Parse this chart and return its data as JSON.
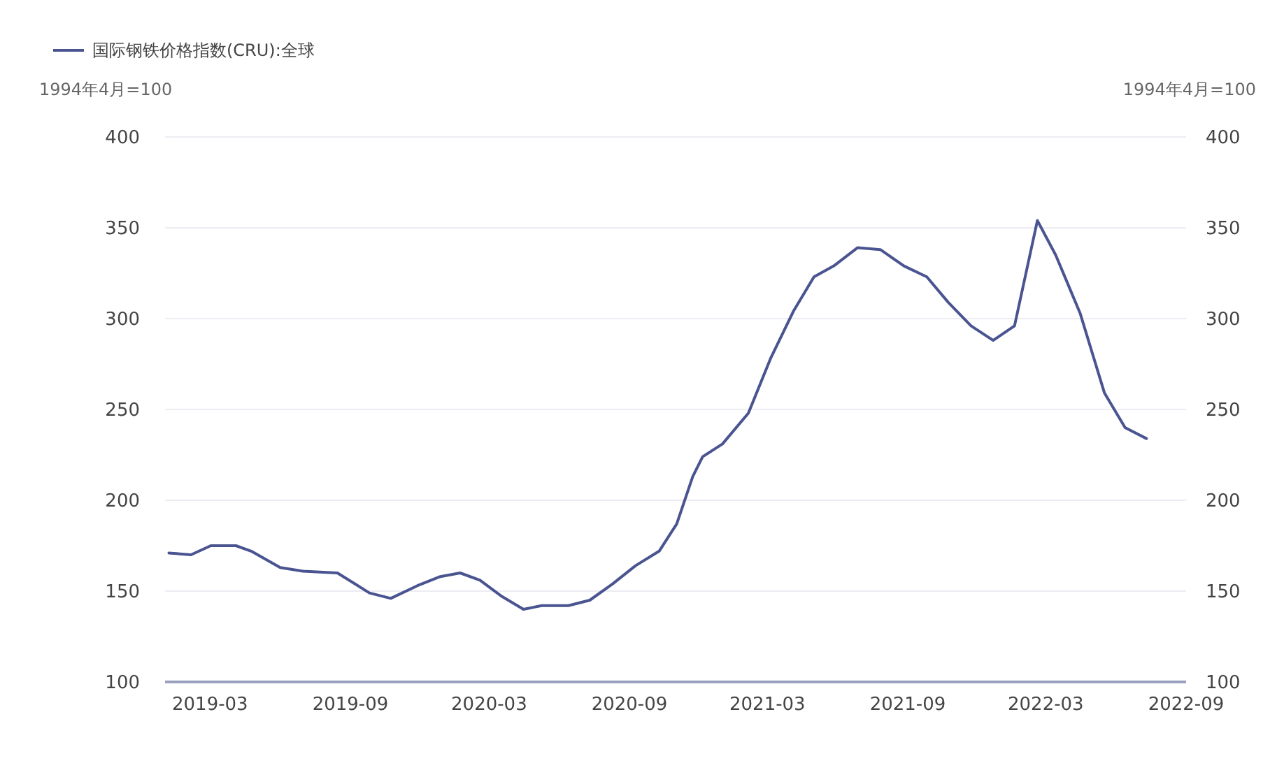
{
  "chart_data": {
    "type": "line",
    "ylabel": "1994年4月=100",
    "y2label": "1994年4月=100",
    "x": [
      "2019-01-06",
      "2019-02-04",
      "2019-03-02",
      "2019-04-04",
      "2019-04-24",
      "2019-06-01",
      "2019-07-01",
      "2019-08-15",
      "2019-09-26",
      "2019-10-24",
      "2019-11-28",
      "2019-12-28",
      "2020-01-23",
      "2020-02-18",
      "2020-03-18",
      "2020-04-15",
      "2020-05-09",
      "2020-06-13",
      "2020-07-11",
      "2020-08-10",
      "2020-09-09",
      "2020-10-10",
      "2020-11-02",
      "2020-11-23",
      "2020-12-06",
      "2021-01-01",
      "2021-02-04",
      "2021-03-05",
      "2021-04-04",
      "2021-05-01",
      "2021-05-27",
      "2021-06-27",
      "2021-07-27",
      "2021-08-27",
      "2021-09-26",
      "2021-10-24",
      "2021-11-23",
      "2021-12-22",
      "2022-01-19",
      "2022-02-18",
      "2022-03-14",
      "2022-04-15",
      "2022-05-17",
      "2022-06-13",
      "2022-07-11"
    ],
    "series": [
      {
        "name": "国际钢铁价格指数(CRU):全球",
        "color": "#4a5490",
        "values": [
          171,
          170,
          175,
          175,
          172,
          163,
          161,
          160,
          149,
          146,
          153,
          158,
          160,
          156,
          147,
          140,
          142,
          142,
          145,
          154,
          164,
          172,
          187,
          213,
          224,
          231,
          248,
          278,
          304,
          323,
          329,
          339,
          338,
          329,
          323,
          309,
          296,
          288,
          296,
          354,
          335,
          303,
          259,
          240,
          234
        ]
      }
    ],
    "xlim": [
      "2019-01-01",
      "2022-09-01"
    ],
    "xticks": [
      {
        "value": "2019-03",
        "label": "2019-03"
      },
      {
        "value": "2019-09",
        "label": "2019-09"
      },
      {
        "value": "2020-03",
        "label": "2020-03"
      },
      {
        "value": "2020-09",
        "label": "2020-09"
      },
      {
        "value": "2021-03",
        "label": "2021-03"
      },
      {
        "value": "2021-09",
        "label": "2021-09"
      },
      {
        "value": "2022-03",
        "label": "2022-03"
      },
      {
        "value": "2022-09",
        "label": "2022-09"
      }
    ],
    "ylim": [
      100,
      400
    ],
    "yticks": [
      100,
      150,
      200,
      250,
      300,
      350,
      400
    ],
    "y2lim": [
      100,
      400
    ],
    "y2ticks": [
      100,
      150,
      200,
      250,
      300,
      350,
      400
    ],
    "grid": "y",
    "legend": "top left",
    "line_style": "solid",
    "marker": "none"
  }
}
